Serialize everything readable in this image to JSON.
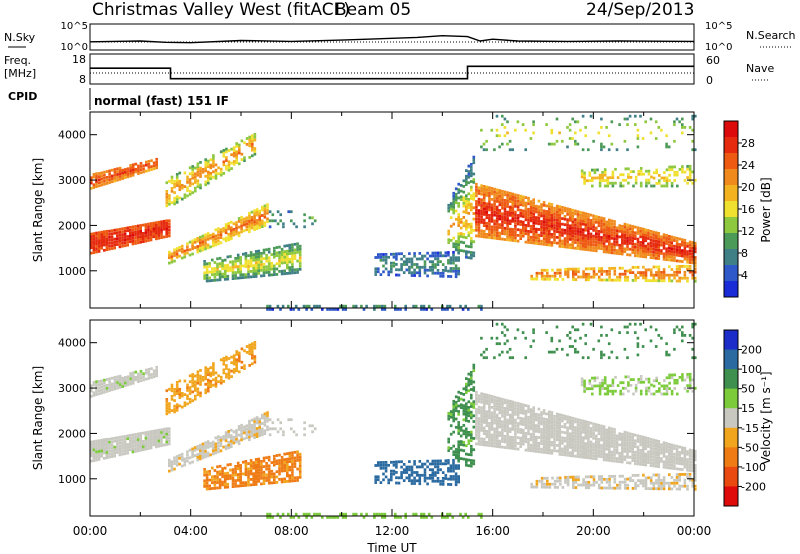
{
  "header": {
    "station": "Christmas Valley West (fitACF)",
    "beam": "Beam 05",
    "date": "24/Sep/2013"
  },
  "panels": {
    "nsky": {
      "left_label": "N.Sky",
      "left_ticks": [
        "10^5",
        "10^0"
      ],
      "right_ticks": [
        "10^5",
        "10^0"
      ],
      "right_label": "N.Search"
    },
    "freq": {
      "left_label_1": "Freq.",
      "left_label_2": "[MHz]",
      "left_ticks": [
        "18",
        "8"
      ],
      "right_ticks": [
        "60",
        "0"
      ],
      "right_label": "Nave"
    },
    "cpid": {
      "label": "CPID",
      "mode": "normal (fast) 151 IF"
    }
  },
  "colors": {
    "power_scale": [
      "#1a2bd8",
      "#2f58c8",
      "#3f7f86",
      "#4c9a58",
      "#8dc83f",
      "#f0e030",
      "#f3b21f",
      "#f08a1c",
      "#ee5a12",
      "#e62a0e",
      "#dc0a0a"
    ],
    "velocity_scale": [
      "#1c2cc8",
      "#2a6aa0",
      "#3f8f4f",
      "#7ccb3a",
      "#c8c8c0",
      "#f1a51c",
      "#ef7b14",
      "#ea4a10",
      "#df0a0a"
    ]
  },
  "chart_data": [
    {
      "type": "heatmap",
      "title": "Power",
      "xlabel": "Time UT",
      "ylabel": "Slant Range [km]",
      "x_ticks": [
        "00:00",
        "04:00",
        "08:00",
        "12:00",
        "16:00",
        "20:00",
        "00:00"
      ],
      "y_ticks": [
        "1000",
        "2000",
        "3000",
        "4000"
      ],
      "xlim_hours": [
        0,
        24
      ],
      "ylim_km": [
        180,
        4500
      ],
      "colorbar_label": "Power [dB]",
      "colorbar_ticks": [
        "28",
        "24",
        "20",
        "16",
        "12",
        "8",
        "4"
      ],
      "zlim": [
        0,
        30
      ]
    },
    {
      "type": "heatmap",
      "title": "Velocity",
      "xlabel": "Time UT",
      "ylabel": "Slant Range [km]",
      "x_ticks": [
        "00:00",
        "04:00",
        "08:00",
        "12:00",
        "16:00",
        "20:00",
        "00:00"
      ],
      "y_ticks": [
        "1000",
        "2000",
        "3000",
        "4000"
      ],
      "xlim_hours": [
        0,
        24
      ],
      "ylim_km": [
        180,
        4500
      ],
      "colorbar_label": "Velocity [m s⁻¹]",
      "colorbar_ticks": [
        "200",
        "100",
        "50",
        "15",
        "-15",
        "-50",
        "-100",
        "-200"
      ],
      "zlim": [
        -250,
        250
      ]
    }
  ],
  "nsky_series": [
    [
      0,
      1.4
    ],
    [
      2,
      1.6
    ],
    [
      3,
      1.3
    ],
    [
      4,
      1.2
    ],
    [
      6,
      1.7
    ],
    [
      8,
      1.5
    ],
    [
      10,
      1.8
    ],
    [
      12,
      2.2
    ],
    [
      13,
      2.4
    ],
    [
      14,
      2.8
    ],
    [
      15,
      2.6
    ],
    [
      15.5,
      1.6
    ],
    [
      16,
      2.0
    ],
    [
      17,
      1.6
    ],
    [
      19,
      1.5
    ],
    [
      21,
      1.6
    ],
    [
      24,
      1.5
    ]
  ],
  "freq_series": [
    [
      0,
      13.5
    ],
    [
      3.2,
      13.5
    ],
    [
      3.2,
      9.6
    ],
    [
      15.0,
      9.6
    ],
    [
      15.0,
      14.2
    ],
    [
      24,
      14.2
    ]
  ],
  "echo_regions": [
    {
      "name": "band-a",
      "t0": 0.0,
      "t1": 3.1,
      "r0a": 1420,
      "r1a": 1900,
      "r0b": 1800,
      "r1b": 2200,
      "p0": 24,
      "p1": 28,
      "v": 2,
      "d": 0.95
    },
    {
      "name": "band-a2",
      "t0": 0.0,
      "t1": 2.6,
      "r0a": 2850,
      "r1a": 3200,
      "r0b": 3300,
      "r1b": 3550,
      "p0": 20,
      "p1": 26,
      "v": 3,
      "d": 0.85
    },
    {
      "name": "band-b",
      "t0": 3.1,
      "t1": 7.0,
      "r0a": 1200,
      "r1a": 1500,
      "r0b": 2050,
      "r1b": 2550,
      "p0": 12,
      "p1": 24,
      "v": -5,
      "d": 0.8
    },
    {
      "name": "band-b2",
      "t0": 3.0,
      "t1": 6.5,
      "r0a": 2400,
      "r1a": 3100,
      "r0b": 3600,
      "r1b": 4100,
      "p0": 10,
      "p1": 22,
      "v": -40,
      "d": 0.55
    },
    {
      "name": "blob-c",
      "t0": 4.5,
      "t1": 8.3,
      "r0a": 800,
      "r1a": 1300,
      "r0b": 1000,
      "r1b": 1700,
      "p0": 6,
      "p1": 16,
      "v": -60,
      "d": 0.75
    },
    {
      "name": "blob-d",
      "t0": 11.3,
      "t1": 14.6,
      "r0a": 950,
      "r1a": 1450,
      "r0b": 900,
      "r1b": 1500,
      "p0": 2,
      "p1": 8,
      "v": 170,
      "d": 0.55
    },
    {
      "name": "streak-e",
      "t0": 14.2,
      "t1": 15.2,
      "r0a": 1400,
      "r1a": 2600,
      "r0b": 1300,
      "r1b": 3600,
      "p0": 4,
      "p1": 20,
      "v": 60,
      "d": 0.5
    },
    {
      "name": "band-f",
      "t0": 15.3,
      "t1": 24.0,
      "r0a": 1800,
      "r1a": 3000,
      "r0b": 1200,
      "r1b": 1700,
      "p0": 20,
      "p1": 28,
      "v": 0,
      "d": 0.9
    },
    {
      "name": "band-f2",
      "t0": 17.5,
      "t1": 24.0,
      "r0a": 850,
      "r1a": 1100,
      "r0b": 800,
      "r1b": 1200,
      "p0": 14,
      "p1": 24,
      "v": -6,
      "d": 0.6
    },
    {
      "name": "band-g",
      "t0": 19.5,
      "t1": 24.0,
      "r0a": 2900,
      "r1a": 3300,
      "r0b": 2900,
      "r1b": 3400,
      "p0": 10,
      "p1": 18,
      "v": 20,
      "d": 0.4
    },
    {
      "name": "floor-noise",
      "t0": 7.0,
      "t1": 15.5,
      "r0a": 180,
      "r1a": 320,
      "r0b": 180,
      "r1b": 320,
      "p0": 2,
      "p1": 8,
      "v": 30,
      "d": 0.45
    },
    {
      "name": "top-sparse",
      "t0": 15.5,
      "t1": 24.0,
      "r0a": 3700,
      "r1a": 4500,
      "r0b": 3700,
      "r1b": 4500,
      "p0": 6,
      "p1": 16,
      "v": 80,
      "d": 0.12
    },
    {
      "name": "scatter-mid",
      "t0": 7.0,
      "t1": 9.0,
      "r0a": 2000,
      "r1a": 2400,
      "r0b": 2000,
      "r1b": 2400,
      "p0": 4,
      "p1": 10,
      "v": 0,
      "d": 0.2
    }
  ]
}
